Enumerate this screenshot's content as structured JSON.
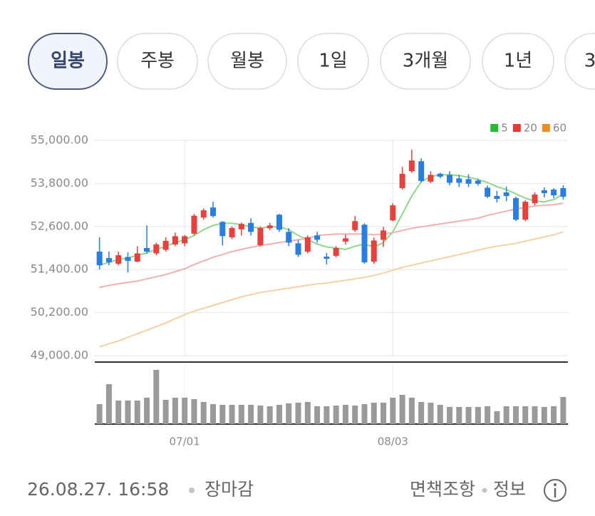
{
  "tabs": [
    {
      "label": "일봉",
      "selected": true
    },
    {
      "label": "주봉",
      "selected": false
    },
    {
      "label": "월봉",
      "selected": false
    },
    {
      "label": "1일",
      "selected": false
    },
    {
      "label": "3개월",
      "selected": false
    },
    {
      "label": "1년",
      "selected": false
    },
    {
      "label": "3",
      "selected": false
    }
  ],
  "chart_data": {
    "type": "candlestick",
    "categories": [
      null,
      null,
      null,
      null,
      null,
      null,
      null,
      null,
      null,
      "07/01",
      null,
      null,
      null,
      null,
      null,
      null,
      null,
      null,
      null,
      null,
      null,
      null,
      null,
      null,
      null,
      null,
      null,
      null,
      null,
      null,
      null,
      "08/03",
      null,
      null,
      null,
      null,
      null,
      null,
      null,
      null,
      null,
      null,
      null,
      null,
      null,
      null,
      null,
      null,
      null,
      null
    ],
    "open": [
      51900,
      51720,
      51560,
      51750,
      51620,
      52000,
      51850,
      51950,
      52100,
      52130,
      52400,
      52850,
      53130,
      52730,
      52300,
      52520,
      52700,
      52080,
      52550,
      52930,
      52450,
      52130,
      51900,
      52350,
      51760,
      51780,
      52180,
      52500,
      52650,
      51620,
      52230,
      52770,
      53670,
      54140,
      54420,
      53850,
      54070,
      54040,
      53940,
      53920,
      53880,
      53680,
      53450,
      53550,
      53390,
      52790,
      53250,
      53610,
      53630,
      53670
    ],
    "high": [
      52300,
      51900,
      51900,
      51880,
      52050,
      52630,
      52150,
      52300,
      52430,
      52360,
      52950,
      53100,
      53290,
      52750,
      52600,
      52710,
      52830,
      52600,
      52700,
      52950,
      52550,
      52230,
      52350,
      52450,
      51860,
      52050,
      52380,
      52890,
      52690,
      52290,
      52590,
      53250,
      54260,
      54740,
      54500,
      54140,
      54100,
      54140,
      54040,
      54060,
      53930,
      53740,
      53590,
      53710,
      53430,
      53330,
      53550,
      53690,
      53670,
      53750
    ],
    "low": [
      51400,
      51520,
      51520,
      51320,
      51600,
      51840,
      51800,
      51900,
      52050,
      52050,
      52350,
      52790,
      52850,
      52070,
      52250,
      52350,
      52350,
      52040,
      52500,
      52450,
      52050,
      51750,
      51850,
      52150,
      51540,
      51740,
      52100,
      52450,
      51560,
      51560,
      52030,
      52750,
      53630,
      54100,
      53830,
      53810,
      53950,
      53750,
      53700,
      53700,
      53740,
      53390,
      53270,
      53310,
      52750,
      52750,
      53190,
      53410,
      53390,
      53350
    ],
    "close": [
      51520,
      51600,
      51800,
      51640,
      51850,
      51900,
      52100,
      52200,
      52330,
      52330,
      52900,
      53050,
      52890,
      52330,
      52560,
      52670,
      52450,
      52560,
      52630,
      52510,
      52150,
      51810,
      52300,
      52230,
      51700,
      52000,
      52270,
      52750,
      51600,
      52210,
      52490,
      53190,
      54070,
      54440,
      53870,
      54040,
      53990,
      53820,
      53820,
      53790,
      53790,
      53430,
      53370,
      53450,
      52790,
      53290,
      53490,
      53530,
      53470,
      53430
    ],
    "up_color": "#e8403c",
    "down_color": "#2a7de1",
    "ylim": [
      49000,
      55000
    ],
    "yticks": [
      {
        "value": 55000,
        "label": "55,000.00"
      },
      {
        "value": 53800,
        "label": "53,800.00"
      },
      {
        "value": 52600,
        "label": "52,600.00"
      },
      {
        "value": 51400,
        "label": "51,400.00"
      },
      {
        "value": 50200,
        "label": "50,200.00"
      },
      {
        "value": 49000,
        "label": "49,000.00"
      }
    ],
    "grid": true,
    "legend": "top-right",
    "series": [
      {
        "name": "5",
        "color": "#22bb33",
        "line_color": "#8fd88a",
        "values": [
          51520,
          51600,
          51680,
          51720,
          51800,
          51860,
          51960,
          52050,
          52150,
          52230,
          52350,
          52510,
          52630,
          52690,
          52690,
          52650,
          52590,
          52550,
          52590,
          52590,
          52510,
          52350,
          52230,
          52110,
          52030,
          52000,
          51960,
          52050,
          52110,
          52030,
          52150,
          52450,
          52950,
          53450,
          53850,
          53990,
          54040,
          54040,
          54020,
          53970,
          53910,
          53830,
          53710,
          53630,
          53510,
          53390,
          53310,
          53290,
          53350,
          53510
        ]
      },
      {
        "name": "20",
        "color": "#e53935",
        "line_color": "#eeb0b0",
        "values": [
          50900,
          50960,
          51000,
          51040,
          51080,
          51140,
          51200,
          51260,
          51340,
          51420,
          51540,
          51640,
          51740,
          51820,
          51900,
          51960,
          52020,
          52070,
          52110,
          52150,
          52190,
          52230,
          52270,
          52350,
          52370,
          52390,
          52390,
          52390,
          52390,
          52370,
          52390,
          52430,
          52490,
          52550,
          52590,
          52630,
          52670,
          52710,
          52750,
          52790,
          52830,
          52910,
          52970,
          53030,
          53090,
          53130,
          53170,
          53190,
          53210,
          53250
        ]
      },
      {
        "name": "60",
        "color": "#f08a24",
        "line_color": "#f7cfa3",
        "values": [
          49250,
          49330,
          49410,
          49510,
          49610,
          49710,
          49810,
          49910,
          50030,
          50140,
          50240,
          50320,
          50400,
          50480,
          50560,
          50640,
          50700,
          50760,
          50800,
          50840,
          50880,
          50920,
          50960,
          51000,
          51020,
          51060,
          51100,
          51140,
          51180,
          51240,
          51300,
          51380,
          51460,
          51520,
          51580,
          51640,
          51700,
          51760,
          51820,
          51880,
          51940,
          52000,
          52050,
          52090,
          52130,
          52190,
          52250,
          52310,
          52370,
          52450
        ]
      }
    ],
    "volume": {
      "color": "#9a9a9a",
      "ylim": [
        0,
        85
      ],
      "values": [
        28,
        56,
        33,
        33,
        33,
        37,
        76,
        34,
        37,
        37,
        35,
        31,
        28,
        27,
        27,
        27,
        27,
        26,
        25,
        27,
        29,
        30,
        31,
        25,
        25,
        26,
        27,
        26,
        28,
        30,
        30,
        37,
        41,
        37,
        31,
        30,
        27,
        24,
        24,
        24,
        24,
        25,
        18,
        25,
        25,
        25,
        25,
        24,
        25,
        38
      ]
    }
  },
  "footer": {
    "timestamp": "26.08.27. 16:58",
    "status": "장마감",
    "disclaimer": "면책조항",
    "info": "정보"
  }
}
